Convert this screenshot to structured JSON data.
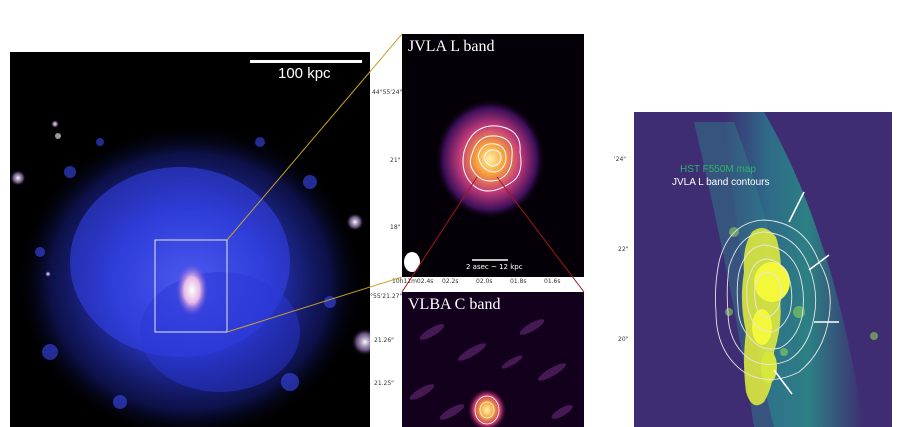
{
  "panel_xray": {
    "scalebar_label": "100 kpc"
  },
  "panel_jvla": {
    "title": "JVLA L band",
    "scale_label": "2 asec ~ 12 kpc",
    "y_ticks": [
      "44°55'24\"",
      "21\"",
      "18\""
    ],
    "x_ticks": [
      "10h11m02.4s",
      "02.2s",
      "02.0s",
      "01.8s",
      "01.6s"
    ]
  },
  "panel_vlba": {
    "title": "VLBA C band",
    "y_ticks": [
      "°55'21.27\"",
      "21.26\"",
      "21.25\""
    ]
  },
  "panel_hst": {
    "legend_map": "HST F550M map",
    "legend_contours": "JVLA L band contours",
    "y_ticks": [
      "'24\"",
      "22\"",
      "20\""
    ]
  },
  "colors": {
    "xray_blue": "#2a3ae0",
    "radio_orange": "#f5a623",
    "hst_green": "#2db36b",
    "connector_gold": "#c9a227",
    "connector_red": "#a01a1a"
  }
}
